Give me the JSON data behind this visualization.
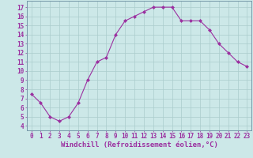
{
  "xlabel": "Windchill (Refroidissement éolien,°C)",
  "x": [
    0,
    1,
    2,
    3,
    4,
    5,
    6,
    7,
    8,
    9,
    10,
    11,
    12,
    13,
    14,
    15,
    16,
    17,
    18,
    19,
    20,
    21,
    22,
    23
  ],
  "y": [
    7.5,
    6.5,
    5.0,
    4.5,
    5.0,
    6.5,
    9.0,
    11.0,
    11.5,
    14.0,
    15.5,
    16.0,
    16.5,
    17.0,
    17.0,
    17.0,
    15.5,
    15.5,
    15.5,
    14.5,
    13.0,
    12.0,
    11.0,
    10.5
  ],
  "line_color": "#9b30a0",
  "marker": "D",
  "marker_size": 2.0,
  "bg_color": "#cce8e8",
  "grid_color": "#aacccc",
  "ylim": [
    3.5,
    17.7
  ],
  "xlim": [
    -0.5,
    23.5
  ],
  "yticks": [
    4,
    5,
    6,
    7,
    8,
    9,
    10,
    11,
    12,
    13,
    14,
    15,
    16,
    17
  ],
  "xticks": [
    0,
    1,
    2,
    3,
    4,
    5,
    6,
    7,
    8,
    9,
    10,
    11,
    12,
    13,
    14,
    15,
    16,
    17,
    18,
    19,
    20,
    21,
    22,
    23
  ],
  "tick_label_color": "#9b30a0",
  "axis_label_color": "#9b30a0",
  "tick_fontsize": 5.5,
  "xlabel_fontsize": 6.5,
  "linewidth": 0.8
}
